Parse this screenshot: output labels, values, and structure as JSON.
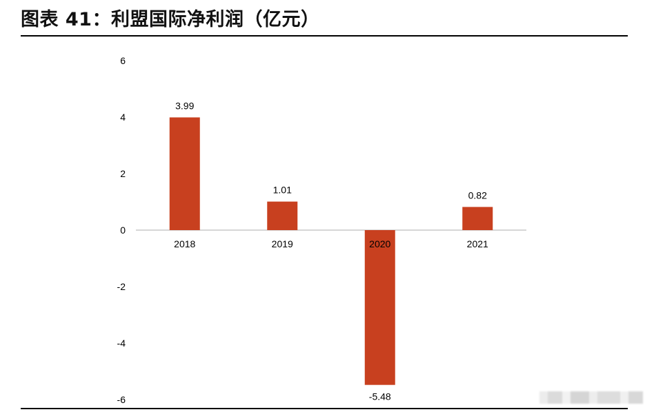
{
  "header": {
    "title": "图表 41：利盟国际净利润（亿元）"
  },
  "chart_data": {
    "type": "bar",
    "title": "图表 41：利盟国际净利润（亿元）",
    "categories": [
      "2018",
      "2019",
      "2020",
      "2021"
    ],
    "values": [
      3.99,
      1.01,
      -5.48,
      0.82
    ],
    "value_labels": [
      "3.99",
      "1.01",
      "-5.48",
      "0.82"
    ],
    "xlabel": "",
    "ylabel": "",
    "ylim": [
      -6,
      6
    ],
    "yticks": [
      6,
      4,
      2,
      0,
      -2,
      -4,
      -6
    ],
    "grid": false,
    "legend": "none",
    "bar_color": "#c8401f",
    "axis_color": "#c8c8c8"
  }
}
